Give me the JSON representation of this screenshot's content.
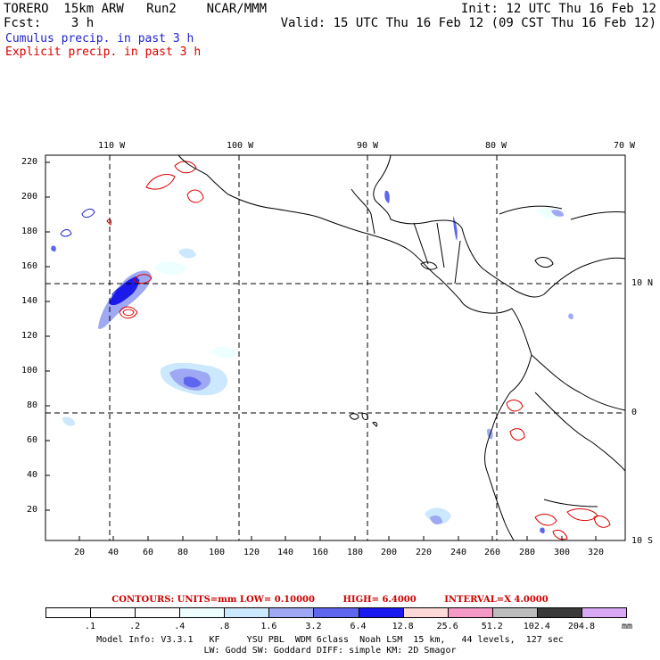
{
  "header": {
    "model_line": "TORERO  15km ARW   Run2    NCAR/MMM",
    "fcst_line": "Fcst:    3 h",
    "init_line": "Init: 12 UTC Thu 16 Feb 12",
    "valid_line": "Valid: 15 UTC Thu 16 Feb 12 (09 CST Thu 16 Feb 12)"
  },
  "legend": {
    "cumulus": "Cumulus precip. in past 3 h",
    "cumulus_color": "#2222cc",
    "explicit": "Explicit precip. in past 3 h",
    "explicit_color": "#dd0000"
  },
  "map": {
    "top_lon_labels": [
      "110 W",
      "100 W",
      "90 W",
      "80 W",
      "70 W"
    ],
    "right_lat_labels": [
      "10 N",
      "0",
      "10 S"
    ],
    "y_ticks": [
      "220",
      "200",
      "180",
      "160",
      "140",
      "120",
      "100",
      "80",
      "60",
      "40",
      "20"
    ],
    "x_ticks": [
      "20",
      "40",
      "60",
      "80",
      "100",
      "120",
      "140",
      "160",
      "180",
      "200",
      "220",
      "240",
      "260",
      "280",
      "300",
      "320"
    ]
  },
  "contours": {
    "units": "CONTOURS:  UNITS=mm  LOW= 0.10000",
    "high": "HIGH=  6.4000",
    "interval": "INTERVAL=X  4.0000"
  },
  "colorbar": {
    "labels": [
      ".1",
      ".2",
      ".4",
      ".8",
      "1.6",
      "3.2",
      "6.4",
      "12.8",
      "25.6",
      "51.2",
      "102.4",
      "204.8"
    ],
    "unit": "mm",
    "colors": [
      "#ffffff",
      "#ffffff",
      "#ffffff",
      "#eeffff",
      "#cce8ff",
      "#9fa8f2",
      "#5f66ee",
      "#1a1af0",
      "#ffd8d8",
      "#f59ac6",
      "#bdbdbd",
      "#3a3a3a",
      "#d9a9f5"
    ]
  },
  "model_info": {
    "line1": "Model Info: V3.3.1   KF     YSU PBL  WDM 6class  Noah LSM  15 km,   44 levels,  127 sec",
    "line2": "LW: Godd SW: Goddard DIFF: simple KM: 2D Smagor"
  }
}
